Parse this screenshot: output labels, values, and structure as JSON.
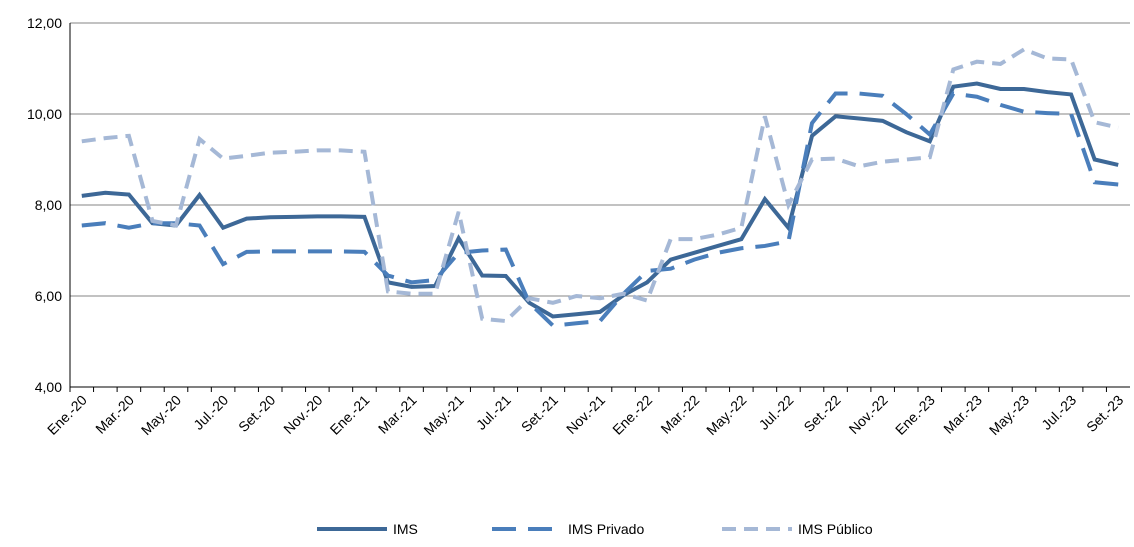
{
  "chart_data": {
    "type": "line",
    "categories": [
      "Ene.-20",
      null,
      "Mar.-20",
      null,
      "May.-20",
      null,
      "Jul.-20",
      null,
      "Set.-20",
      null,
      "Nov.-20",
      null,
      "Ene.-21",
      null,
      "Mar.-21",
      null,
      "May.-21",
      null,
      "Jul.-21",
      null,
      "Set.-21",
      null,
      "Nov.-21",
      null,
      "Ene.-22",
      null,
      "Mar.-22",
      null,
      "May.-22",
      null,
      "Jul.-22",
      null,
      "Set.-22",
      null,
      "Nov.-22",
      null,
      "Ene.-23",
      null,
      "Mar.-23",
      null,
      "May.-23",
      null,
      "Jul.-23",
      null,
      "Set.-23"
    ],
    "series": [
      {
        "name": "IMS",
        "color": "#3d6897",
        "dash": "solid",
        "values": [
          8.2,
          8.27,
          8.23,
          7.6,
          7.55,
          8.22,
          7.5,
          7.7,
          7.73,
          7.74,
          7.75,
          7.75,
          7.74,
          6.3,
          6.2,
          6.22,
          7.27,
          6.45,
          6.44,
          5.85,
          5.55,
          5.6,
          5.65,
          6.02,
          6.3,
          6.8,
          6.95,
          7.1,
          7.25,
          8.13,
          7.5,
          9.52,
          9.95,
          9.9,
          9.85,
          9.6,
          9.4,
          10.6,
          10.67,
          10.55,
          10.55,
          10.48,
          10.43,
          9.0,
          8.88
        ]
      },
      {
        "name": "IMS Privado",
        "color": "#4a7ebb",
        "dash": "long",
        "values": [
          7.55,
          7.6,
          7.5,
          7.6,
          7.6,
          7.55,
          6.7,
          6.97,
          6.98,
          6.98,
          6.98,
          6.98,
          6.97,
          6.45,
          6.3,
          6.35,
          6.95,
          7.0,
          7.02,
          5.85,
          5.35,
          5.4,
          5.45,
          6.05,
          6.55,
          6.6,
          6.8,
          6.95,
          7.05,
          7.1,
          7.2,
          9.8,
          10.45,
          10.45,
          10.4,
          10.0,
          9.55,
          10.45,
          10.38,
          10.2,
          10.05,
          10.02,
          10.0,
          8.5,
          8.45
        ]
      },
      {
        "name": "IMS Público",
        "color": "#a5b8d6",
        "dash": "short",
        "values": [
          9.4,
          9.47,
          9.52,
          7.65,
          7.55,
          9.45,
          9.02,
          9.08,
          9.15,
          9.17,
          9.2,
          9.2,
          9.17,
          6.1,
          6.05,
          6.05,
          7.85,
          5.5,
          5.45,
          5.95,
          5.85,
          6.0,
          5.95,
          6.05,
          5.9,
          7.25,
          7.25,
          7.35,
          7.5,
          9.95,
          8.0,
          9.0,
          9.02,
          8.85,
          8.95,
          9.0,
          9.05,
          10.98,
          11.15,
          11.1,
          11.42,
          11.22,
          11.2,
          9.82,
          9.7
        ]
      }
    ],
    "ylim": [
      4,
      12
    ],
    "yticks": [
      {
        "value": 4,
        "label": "4,00"
      },
      {
        "value": 6,
        "label": "6,00"
      },
      {
        "value": 8,
        "label": "8,00"
      },
      {
        "value": 10,
        "label": "10,00"
      },
      {
        "value": 12,
        "label": "12,00"
      }
    ],
    "grid": true,
    "legend": "bottom"
  }
}
